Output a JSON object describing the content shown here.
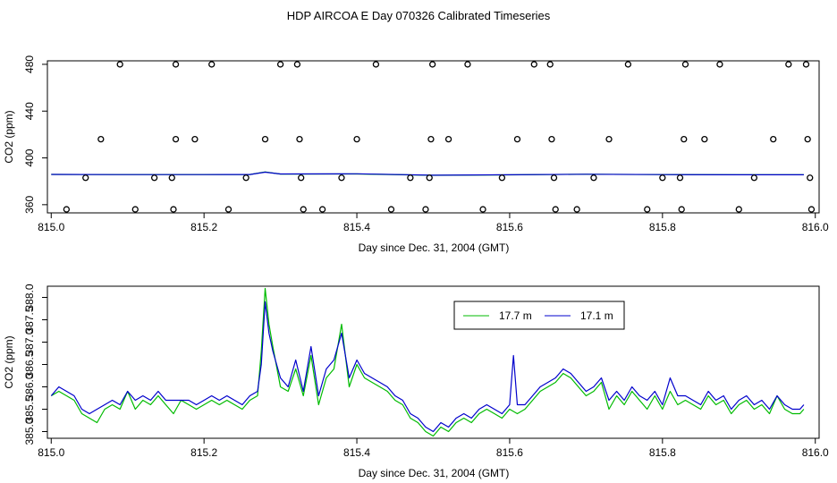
{
  "title": "HDP AIRCOA E  Day 070326  Calibrated Timeseries",
  "chart_data": [
    {
      "type": "scatter",
      "xlabel": "Day since Dec. 31, 2004 (GMT)",
      "ylabel": "CO2 (ppm)",
      "xlim": [
        814.995,
        816.005
      ],
      "ylim": [
        353,
        483
      ],
      "xticks": [
        815.0,
        815.2,
        815.4,
        815.6,
        815.8,
        816.0
      ],
      "xtick_labels": [
        "815.0",
        "815.2",
        "815.4",
        "815.6",
        "815.8",
        "816.0"
      ],
      "yticks": [
        360,
        400,
        440,
        480
      ],
      "ytick_labels": [
        "360",
        "400",
        "440",
        "480"
      ],
      "grid": false,
      "calibration_points": {
        "x": [
          815.02,
          815.045,
          815.065,
          815.09,
          815.11,
          815.135,
          815.16,
          815.158,
          815.163,
          815.163,
          815.188,
          815.21,
          815.232,
          815.255,
          815.28,
          815.3,
          815.322,
          815.325,
          815.327,
          815.33,
          815.355,
          815.38,
          815.4,
          815.425,
          815.445,
          815.47,
          815.49,
          815.495,
          815.497,
          815.499,
          815.52,
          815.545,
          815.565,
          815.59,
          815.61,
          815.632,
          815.653,
          815.655,
          815.658,
          815.66,
          815.688,
          815.71,
          815.73,
          815.755,
          815.78,
          815.8,
          815.825,
          815.823,
          815.828,
          815.83,
          815.855,
          815.875,
          815.9,
          815.92,
          815.945,
          815.965,
          815.988,
          815.99,
          815.993,
          815.995
        ],
        "y": [
          356,
          383,
          416,
          480,
          356,
          383,
          356,
          383,
          416,
          480,
          416,
          480,
          356,
          383,
          416,
          480,
          480,
          416,
          383,
          356,
          356,
          383,
          416,
          480,
          356,
          383,
          356,
          383,
          416,
          480,
          416,
          480,
          356,
          383,
          416,
          480,
          480,
          416,
          383,
          356,
          356,
          383,
          416,
          480,
          356,
          383,
          356,
          383,
          416,
          480,
          416,
          480,
          356,
          383,
          416,
          480,
          480,
          416,
          383,
          356
        ]
      },
      "series": [
        {
          "name": "17.7 m",
          "x": [
            815.0,
            815.1,
            815.2,
            815.26,
            815.28,
            815.3,
            815.4,
            815.5,
            815.6,
            815.7,
            815.8,
            815.9,
            815.985
          ],
          "y": [
            385.9,
            385.7,
            385.7,
            385.8,
            388.0,
            386.2,
            386.3,
            385.1,
            385.5,
            386.0,
            385.7,
            385.6,
            385.6
          ]
        },
        {
          "name": "17.1 m",
          "x": [
            815.0,
            815.1,
            815.2,
            815.26,
            815.28,
            815.3,
            815.4,
            815.5,
            815.6,
            815.7,
            815.8,
            815.9,
            815.985
          ],
          "y": [
            385.9,
            385.7,
            385.7,
            385.8,
            387.8,
            386.3,
            386.4,
            385.2,
            385.6,
            386.0,
            385.7,
            385.6,
            385.6
          ]
        }
      ]
    },
    {
      "type": "line",
      "xlabel": "Day since Dec. 31, 2004 (GMT)",
      "ylabel": "CO2 (ppm)",
      "xlim": [
        814.995,
        816.005
      ],
      "ylim": [
        384.85,
        388.25
      ],
      "xticks": [
        815.0,
        815.2,
        815.4,
        815.6,
        815.8,
        816.0
      ],
      "xtick_labels": [
        "815.0",
        "815.2",
        "815.4",
        "815.6",
        "815.8",
        "816.0"
      ],
      "yticks": [
        385.0,
        385.5,
        386.0,
        386.5,
        387.0,
        387.5,
        388.0
      ],
      "ytick_labels": [
        "385.0",
        "385.5",
        "386.0",
        "386.5",
        "387.0",
        "387.5",
        "388.0"
      ],
      "grid": false,
      "legend": {
        "placement": "top-center-right"
      },
      "series": [
        {
          "name": "17.7 m",
          "color": "#00bb00",
          "x": [
            815.0,
            815.01,
            815.02,
            815.03,
            815.04,
            815.05,
            815.06,
            815.07,
            815.08,
            815.09,
            815.1,
            815.11,
            815.12,
            815.13,
            815.14,
            815.15,
            815.16,
            815.17,
            815.18,
            815.19,
            815.2,
            815.21,
            815.22,
            815.23,
            815.24,
            815.25,
            815.26,
            815.27,
            815.275,
            815.28,
            815.285,
            815.29,
            815.3,
            815.31,
            815.32,
            815.33,
            815.34,
            815.35,
            815.36,
            815.37,
            815.38,
            815.39,
            815.4,
            815.41,
            815.42,
            815.43,
            815.44,
            815.45,
            815.46,
            815.47,
            815.48,
            815.49,
            815.5,
            815.51,
            815.52,
            815.53,
            815.54,
            815.55,
            815.56,
            815.57,
            815.58,
            815.59,
            815.6,
            815.61,
            815.62,
            815.63,
            815.64,
            815.65,
            815.66,
            815.67,
            815.68,
            815.69,
            815.7,
            815.71,
            815.72,
            815.73,
            815.74,
            815.75,
            815.76,
            815.77,
            815.78,
            815.79,
            815.8,
            815.81,
            815.82,
            815.83,
            815.84,
            815.85,
            815.86,
            815.87,
            815.88,
            815.89,
            815.9,
            815.91,
            815.92,
            815.93,
            815.94,
            815.95,
            815.96,
            815.97,
            815.98,
            815.985
          ],
          "y": [
            385.8,
            385.9,
            385.8,
            385.7,
            385.4,
            385.3,
            385.2,
            385.5,
            385.6,
            385.5,
            385.9,
            385.5,
            385.7,
            385.6,
            385.8,
            385.6,
            385.4,
            385.7,
            385.6,
            385.5,
            385.6,
            385.7,
            385.6,
            385.7,
            385.6,
            385.5,
            385.7,
            385.8,
            386.8,
            388.2,
            387.4,
            386.9,
            386.0,
            385.9,
            386.4,
            385.8,
            386.7,
            385.6,
            386.2,
            386.4,
            387.4,
            386.0,
            386.5,
            386.2,
            386.1,
            386.0,
            385.9,
            385.7,
            385.6,
            385.3,
            385.2,
            385.0,
            384.9,
            385.1,
            385.0,
            385.2,
            385.3,
            385.2,
            385.4,
            385.5,
            385.4,
            385.3,
            385.5,
            385.4,
            385.5,
            385.7,
            385.9,
            386.0,
            386.1,
            386.3,
            386.2,
            386.0,
            385.8,
            385.9,
            386.1,
            385.5,
            385.8,
            385.6,
            385.9,
            385.7,
            385.5,
            385.8,
            385.5,
            385.9,
            385.6,
            385.7,
            385.6,
            385.5,
            385.8,
            385.6,
            385.7,
            385.4,
            385.6,
            385.7,
            385.5,
            385.6,
            385.4,
            385.8,
            385.5,
            385.4,
            385.4,
            385.5
          ]
        },
        {
          "name": "17.1 m",
          "color": "#0000cc",
          "x": [
            815.0,
            815.01,
            815.02,
            815.03,
            815.04,
            815.05,
            815.06,
            815.07,
            815.08,
            815.09,
            815.1,
            815.11,
            815.12,
            815.13,
            815.14,
            815.15,
            815.16,
            815.17,
            815.18,
            815.19,
            815.2,
            815.21,
            815.22,
            815.23,
            815.24,
            815.25,
            815.26,
            815.27,
            815.275,
            815.28,
            815.285,
            815.29,
            815.3,
            815.31,
            815.32,
            815.33,
            815.34,
            815.35,
            815.36,
            815.37,
            815.38,
            815.39,
            815.4,
            815.41,
            815.42,
            815.43,
            815.44,
            815.45,
            815.46,
            815.47,
            815.48,
            815.49,
            815.5,
            815.51,
            815.52,
            815.53,
            815.54,
            815.55,
            815.56,
            815.57,
            815.58,
            815.59,
            815.6,
            815.605,
            815.61,
            815.62,
            815.63,
            815.64,
            815.65,
            815.66,
            815.67,
            815.68,
            815.69,
            815.7,
            815.71,
            815.72,
            815.73,
            815.74,
            815.75,
            815.76,
            815.77,
            815.78,
            815.79,
            815.8,
            815.81,
            815.82,
            815.83,
            815.84,
            815.85,
            815.86,
            815.87,
            815.88,
            815.89,
            815.9,
            815.91,
            815.92,
            815.93,
            815.94,
            815.95,
            815.96,
            815.97,
            815.98,
            815.985
          ],
          "y": [
            385.8,
            386.0,
            385.9,
            385.8,
            385.5,
            385.4,
            385.5,
            385.6,
            385.7,
            385.6,
            385.9,
            385.7,
            385.8,
            385.7,
            385.9,
            385.7,
            385.7,
            385.7,
            385.7,
            385.6,
            385.7,
            385.8,
            385.7,
            385.8,
            385.7,
            385.6,
            385.8,
            385.9,
            386.5,
            387.9,
            387.2,
            386.8,
            386.2,
            386.0,
            386.6,
            385.9,
            386.9,
            385.8,
            386.4,
            386.6,
            387.2,
            386.2,
            386.6,
            386.3,
            386.2,
            386.1,
            386.0,
            385.8,
            385.7,
            385.4,
            385.3,
            385.1,
            385.0,
            385.2,
            385.1,
            385.3,
            385.4,
            385.3,
            385.5,
            385.6,
            385.5,
            385.4,
            385.6,
            386.7,
            385.6,
            385.6,
            385.8,
            386.0,
            386.1,
            386.2,
            386.4,
            386.3,
            386.1,
            385.9,
            386.0,
            386.2,
            385.7,
            385.9,
            385.7,
            386.0,
            385.8,
            385.7,
            385.9,
            385.6,
            386.2,
            385.8,
            385.8,
            385.7,
            385.6,
            385.9,
            385.7,
            385.8,
            385.5,
            385.7,
            385.8,
            385.6,
            385.7,
            385.5,
            385.8,
            385.6,
            385.5,
            385.5,
            385.6
          ]
        }
      ]
    }
  ]
}
